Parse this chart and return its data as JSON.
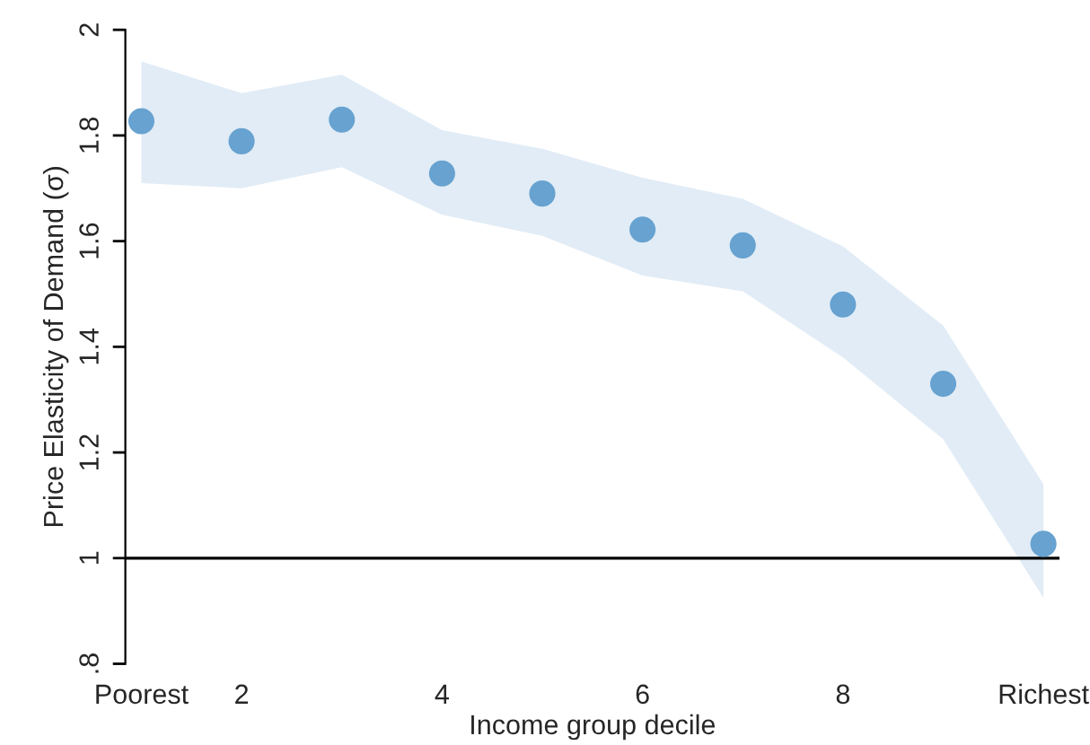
{
  "chart_data": {
    "type": "scatter",
    "xlabel": "Income group decile",
    "ylabel": "Price Elasticity of Demand (σ)",
    "x": [
      1,
      2,
      3,
      4,
      5,
      6,
      7,
      8,
      9,
      10
    ],
    "series": [
      {
        "color": "#67a2d0",
        "values": [
          1.827,
          1.789,
          1.83,
          1.728,
          1.69,
          1.622,
          1.592,
          1.48,
          1.33,
          1.027
        ],
        "lower": [
          1.71,
          1.7,
          1.74,
          1.65,
          1.61,
          1.535,
          1.505,
          1.38,
          1.225,
          0.925
        ],
        "upper": [
          1.94,
          1.88,
          1.915,
          1.81,
          1.775,
          1.72,
          1.68,
          1.59,
          1.44,
          1.14
        ]
      }
    ],
    "xlim": [
      0.84,
      10.16
    ],
    "ylim": [
      0.8,
      2
    ],
    "xticks": [
      {
        "value": 1,
        "label": "Poorest"
      },
      2,
      4,
      6,
      8,
      {
        "value": 10,
        "label": "Richest"
      }
    ],
    "yticks": [
      {
        "value": 0.8,
        "label": ".8"
      },
      1,
      1.2,
      1.4,
      1.6,
      1.8,
      2
    ],
    "ref_lines": [
      {
        "axis": "y",
        "value": 1,
        "label": null,
        "color": "#000000"
      }
    ],
    "grid": false,
    "legend": false,
    "marker": "circle"
  }
}
